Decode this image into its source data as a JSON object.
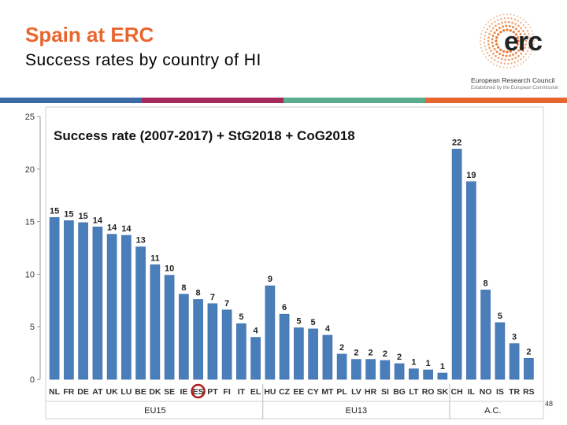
{
  "header": {
    "title": "Spain at ERC",
    "subtitle": "Success rates by country of HI"
  },
  "logo": {
    "word": "erc",
    "caption": "European Research Council",
    "subcaption": "Established by the European Commission"
  },
  "strip_colors": [
    "#3a6ba5",
    "#a52a5b",
    "#5aac8c",
    "#e8662e"
  ],
  "page_number": "48",
  "colors": {
    "bar": "#4a7ebb",
    "bar_dark": "#3a6aa8",
    "highlight": "#b01c1c",
    "title": "#e8662e"
  },
  "chart_data": {
    "type": "bar",
    "title": "Success rate (2007-2017) + StG2018 + CoG2018",
    "xlabel": "",
    "ylabel": "",
    "ylim": [
      0,
      25
    ],
    "yticks": [
      0,
      5,
      10,
      15,
      20,
      25
    ],
    "categories": [
      "NL",
      "FR",
      "DE",
      "AT",
      "UK",
      "LU",
      "BE",
      "DK",
      "SE",
      "IE",
      "ES",
      "PT",
      "FI",
      "IT",
      "EL",
      "HU",
      "CZ",
      "EE",
      "CY",
      "MT",
      "PL",
      "LV",
      "HR",
      "SI",
      "BG",
      "LT",
      "RO",
      "SK",
      "CH",
      "IL",
      "NO",
      "IS",
      "TR",
      "RS"
    ],
    "values": [
      15.4,
      15.1,
      14.9,
      14.5,
      13.8,
      13.7,
      12.6,
      10.9,
      9.9,
      8.1,
      7.6,
      7.2,
      6.6,
      5.3,
      4.0,
      8.9,
      6.2,
      4.9,
      4.8,
      4.2,
      2.4,
      1.9,
      1.9,
      1.8,
      1.5,
      1.0,
      0.9,
      0.6,
      21.9,
      18.8,
      8.5,
      5.4,
      3.4,
      2.0
    ],
    "data_labels": [
      "15",
      "15",
      "15",
      "14",
      "14",
      "14",
      "13",
      "11",
      "10",
      "8",
      "8",
      "7",
      "7",
      "5",
      "4",
      "9",
      "6",
      "5",
      "5",
      "4",
      "2",
      "2",
      "2",
      "2",
      "2",
      "1",
      "1",
      "1",
      "22",
      "19",
      "8",
      "5",
      "3",
      "2"
    ],
    "highlight_category": "ES",
    "groups": [
      {
        "label": "EU15",
        "start": 0,
        "end": 14
      },
      {
        "label": "EU13",
        "start": 15,
        "end": 27
      },
      {
        "label": "A.C.",
        "start": 28,
        "end": 33
      }
    ],
    "grid": false,
    "legend": "none"
  }
}
